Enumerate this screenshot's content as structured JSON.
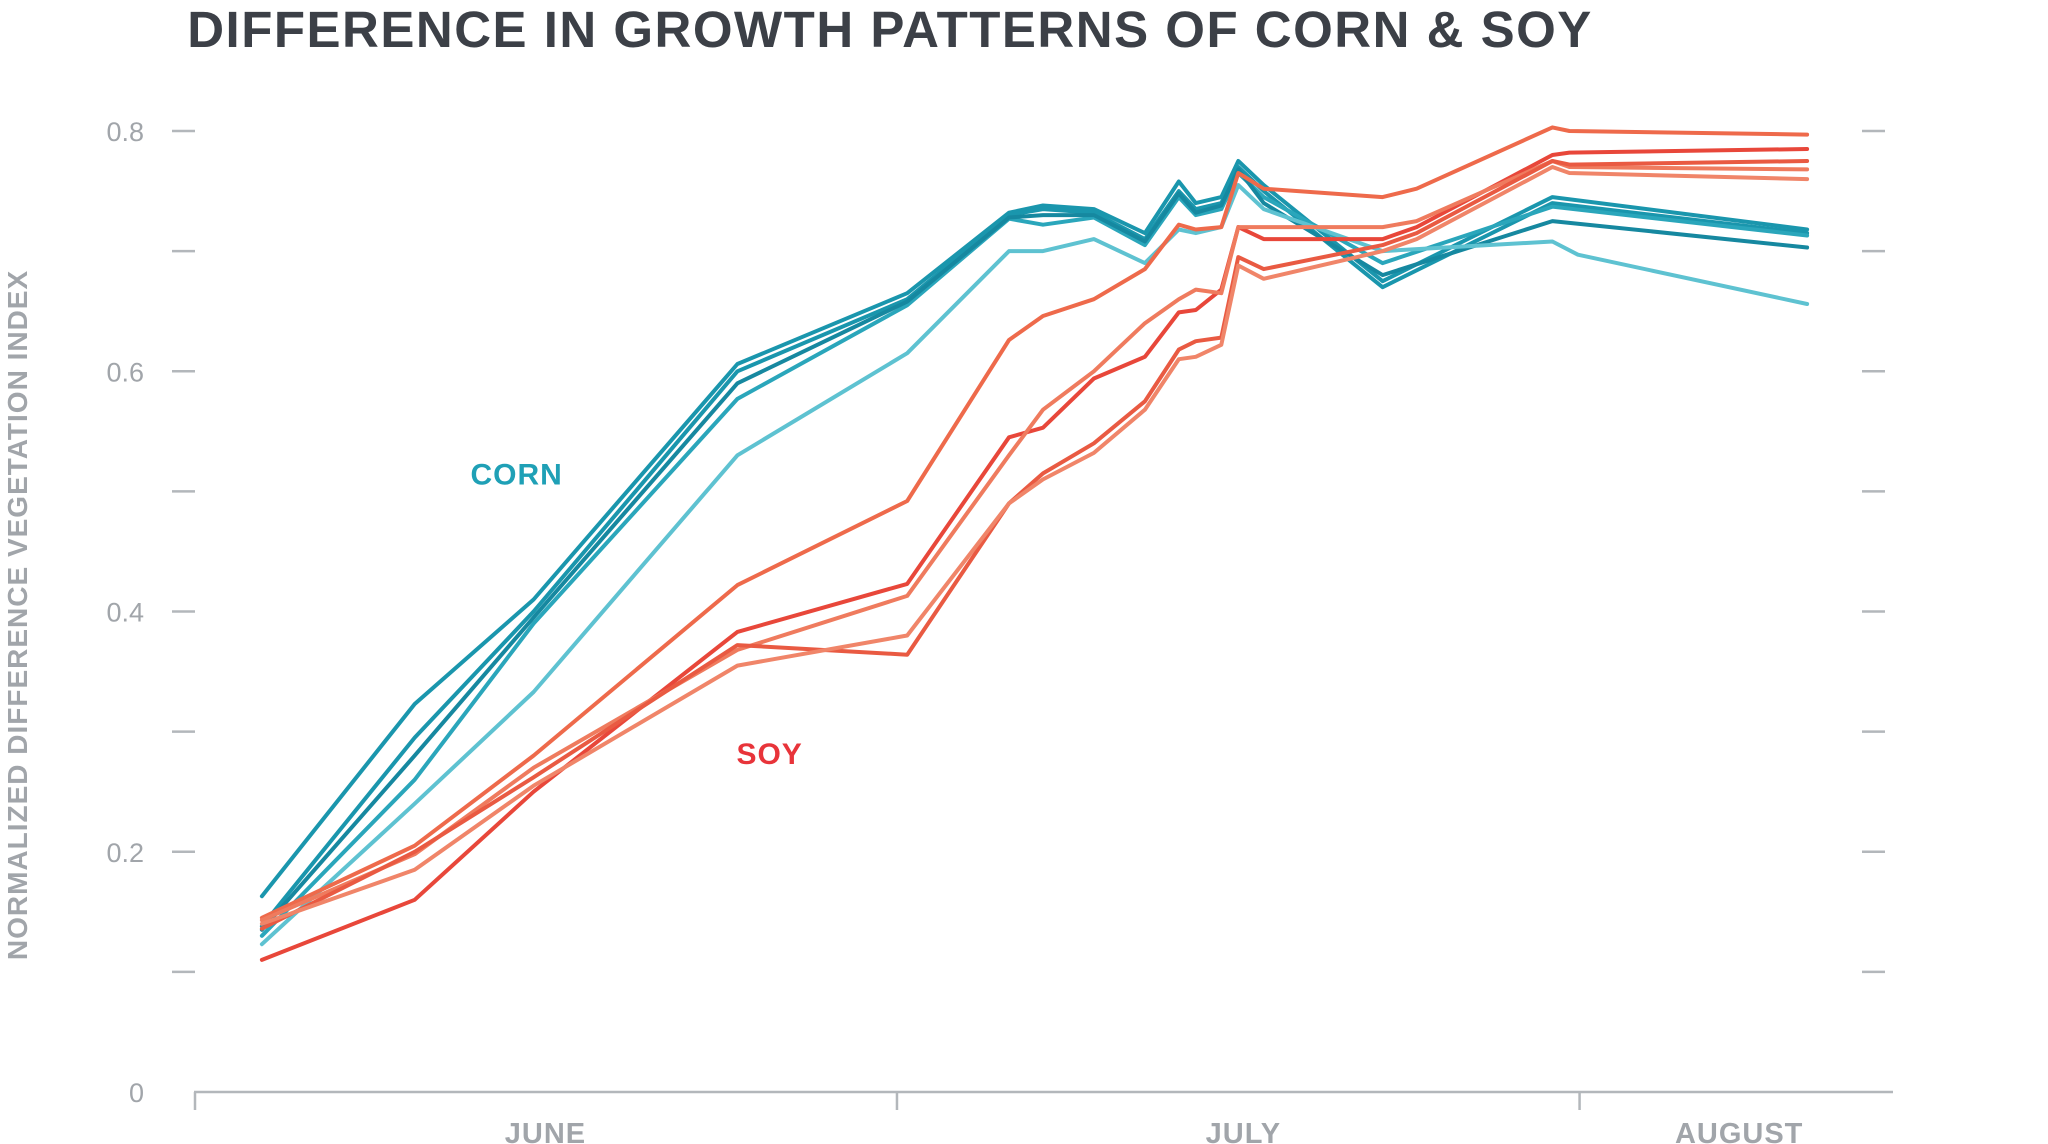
{
  "chart_data": {
    "type": "line",
    "title": "DIFFERENCE IN GROWTH PATTERNS OF CORN & SOY",
    "xlabel": "",
    "ylabel": "NORMALIZED DIFFERENCE VEGETATION INDEX",
    "ylim": [
      0,
      0.8
    ],
    "yticks": [
      {
        "value": 0.8,
        "label": "0.8"
      },
      {
        "value": 0.7,
        "label": ""
      },
      {
        "value": 0.6,
        "label": "0.6"
      },
      {
        "value": 0.5,
        "label": ""
      },
      {
        "value": 0.4,
        "label": "0.4"
      },
      {
        "value": 0.3,
        "label": ""
      },
      {
        "value": 0.2,
        "label": "0.2"
      },
      {
        "value": 0.1,
        "label": ""
      },
      {
        "value": 0,
        "label": "0"
      }
    ],
    "xlim": [
      0,
      100
    ],
    "month_labels": [
      {
        "label": "JUNE",
        "x": 20.7
      },
      {
        "label": "JULY",
        "x": 61.8
      },
      {
        "label": "AUGUST",
        "x": 91.0
      }
    ],
    "month_boundaries": [
      41.4,
      81.6
    ],
    "annotations": [
      {
        "text": "CORN",
        "x": 19.0,
        "y": 0.515,
        "color": "#1fa0b6"
      },
      {
        "text": "SOY",
        "x": 33.9,
        "y": 0.282,
        "color": "#e8343a"
      }
    ],
    "series": [
      {
        "name": "corn-1",
        "crop": "CORN",
        "color": "#1a96ad",
        "x": [
          4,
          13,
          20,
          32,
          42,
          48,
          50,
          53,
          56,
          58,
          59,
          60.5,
          61.5,
          63,
          70,
          80,
          95
        ],
        "y": [
          0.163,
          0.323,
          0.41,
          0.606,
          0.665,
          0.732,
          0.738,
          0.735,
          0.715,
          0.758,
          0.74,
          0.745,
          0.775,
          0.755,
          0.675,
          0.745,
          0.718
        ]
      },
      {
        "name": "corn-2",
        "crop": "CORN",
        "color": "#1a96ad",
        "x": [
          4,
          13,
          20,
          32,
          42,
          48,
          50,
          53,
          56,
          58,
          59,
          60.5,
          61.5,
          63,
          70,
          80,
          95
        ],
        "y": [
          0.138,
          0.295,
          0.4,
          0.6,
          0.66,
          0.73,
          0.735,
          0.732,
          0.71,
          0.75,
          0.735,
          0.74,
          0.77,
          0.75,
          0.67,
          0.74,
          0.715
        ]
      },
      {
        "name": "corn-3",
        "crop": "CORN",
        "color": "#2aa6bb",
        "x": [
          4,
          13,
          20,
          32,
          42,
          48,
          50,
          53,
          56,
          58,
          59,
          60.5,
          61.5,
          63,
          70,
          80,
          95
        ],
        "y": [
          0.13,
          0.26,
          0.39,
          0.577,
          0.655,
          0.727,
          0.722,
          0.728,
          0.705,
          0.745,
          0.73,
          0.735,
          0.765,
          0.745,
          0.69,
          0.737,
          0.713
        ]
      },
      {
        "name": "corn-4",
        "crop": "CORN",
        "color": "#1688a0",
        "x": [
          4,
          13,
          20,
          32,
          42,
          48,
          50,
          53,
          56,
          58,
          59,
          60.5,
          61.5,
          63,
          70,
          80,
          95
        ],
        "y": [
          0.135,
          0.28,
          0.395,
          0.59,
          0.658,
          0.728,
          0.73,
          0.73,
          0.708,
          0.748,
          0.732,
          0.738,
          0.768,
          0.74,
          0.68,
          0.725,
          0.703
        ]
      },
      {
        "name": "corn-5",
        "crop": "CORN",
        "color": "#5ec2d1",
        "x": [
          4,
          13,
          20,
          32,
          42,
          48,
          50,
          53,
          56,
          58,
          59,
          60.5,
          61.5,
          63,
          70,
          80,
          81.5,
          95
        ],
        "y": [
          0.123,
          0.24,
          0.333,
          0.53,
          0.615,
          0.7,
          0.7,
          0.71,
          0.69,
          0.718,
          0.715,
          0.72,
          0.755,
          0.735,
          0.7,
          0.708,
          0.697,
          0.656
        ]
      },
      {
        "name": "soy-1",
        "crop": "SOY",
        "color": "#ee6a4b",
        "x": [
          4,
          13,
          20,
          32,
          42,
          48,
          50,
          53,
          56,
          58,
          59,
          60.5,
          61.5,
          63,
          70,
          72,
          80,
          81,
          95
        ],
        "y": [
          0.145,
          0.205,
          0.28,
          0.422,
          0.492,
          0.626,
          0.646,
          0.66,
          0.685,
          0.722,
          0.718,
          0.72,
          0.765,
          0.752,
          0.745,
          0.752,
          0.803,
          0.8,
          0.797
        ]
      },
      {
        "name": "soy-2",
        "crop": "SOY",
        "color": "#e8473a",
        "x": [
          4,
          13,
          20,
          32,
          42,
          48,
          50,
          53,
          56,
          58,
          59,
          60.5,
          61.5,
          63,
          70,
          72,
          80,
          81,
          95
        ],
        "y": [
          0.11,
          0.16,
          0.25,
          0.383,
          0.423,
          0.545,
          0.553,
          0.594,
          0.612,
          0.649,
          0.651,
          0.668,
          0.72,
          0.71,
          0.71,
          0.72,
          0.78,
          0.782,
          0.785
        ]
      },
      {
        "name": "soy-3",
        "crop": "SOY",
        "color": "#ef7b5e",
        "x": [
          4,
          13,
          20,
          32,
          42,
          48,
          50,
          53,
          56,
          58,
          59,
          60.5,
          61.5,
          63,
          70,
          72,
          80,
          81,
          95
        ],
        "y": [
          0.143,
          0.198,
          0.27,
          0.368,
          0.413,
          0.53,
          0.568,
          0.6,
          0.64,
          0.66,
          0.668,
          0.665,
          0.72,
          0.72,
          0.72,
          0.725,
          0.775,
          0.77,
          0.768
        ]
      },
      {
        "name": "soy-4",
        "crop": "SOY",
        "color": "#e95a42",
        "x": [
          4,
          13,
          20,
          32,
          42,
          48,
          50,
          53,
          56,
          58,
          59,
          60.5,
          61.5,
          63,
          70,
          72,
          80,
          81,
          95
        ],
        "y": [
          0.136,
          0.2,
          0.262,
          0.372,
          0.364,
          0.49,
          0.515,
          0.54,
          0.575,
          0.618,
          0.625,
          0.628,
          0.695,
          0.685,
          0.705,
          0.715,
          0.775,
          0.772,
          0.775
        ]
      },
      {
        "name": "soy-5",
        "crop": "SOY",
        "color": "#f08569",
        "x": [
          4,
          13,
          20,
          32,
          42,
          48,
          50,
          53,
          56,
          58,
          59,
          60.5,
          61.5,
          63,
          70,
          72,
          80,
          81,
          95
        ],
        "y": [
          0.14,
          0.185,
          0.255,
          0.355,
          0.38,
          0.49,
          0.51,
          0.532,
          0.568,
          0.61,
          0.612,
          0.622,
          0.688,
          0.677,
          0.7,
          0.71,
          0.77,
          0.765,
          0.76
        ]
      }
    ]
  }
}
